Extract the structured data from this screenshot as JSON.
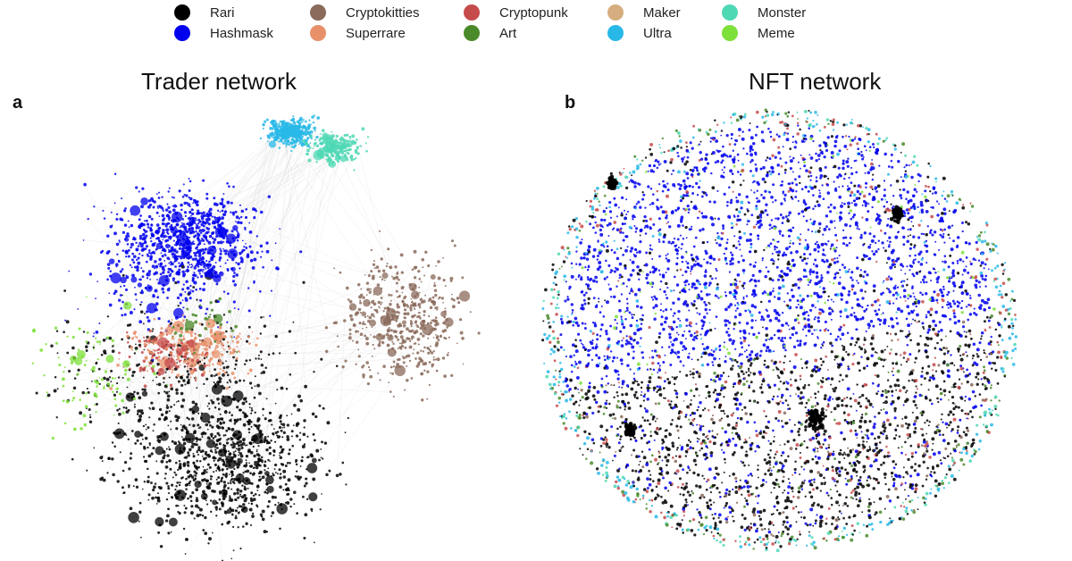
{
  "legend": [
    {
      "label": "Rari",
      "color": "#000000"
    },
    {
      "label": "Hashmask",
      "color": "#0000ee"
    },
    {
      "label": "Cryptokitties",
      "color": "#8a6a5a"
    },
    {
      "label": "Superrare",
      "color": "#e8906a"
    },
    {
      "label": "Cryptopunk",
      "color": "#c64b4b"
    },
    {
      "label": "Art",
      "color": "#4a8a2a"
    },
    {
      "label": "Maker",
      "color": "#d6ad7e"
    },
    {
      "label": "Ultra",
      "color": "#28b8e8"
    },
    {
      "label": "Monster",
      "color": "#4ed8b4"
    },
    {
      "label": "Meme",
      "color": "#7ee03a"
    }
  ],
  "panels": {
    "a": {
      "letter": "a",
      "title": "Trader network"
    },
    "b": {
      "letter": "b",
      "title": "NFT network"
    }
  }
}
